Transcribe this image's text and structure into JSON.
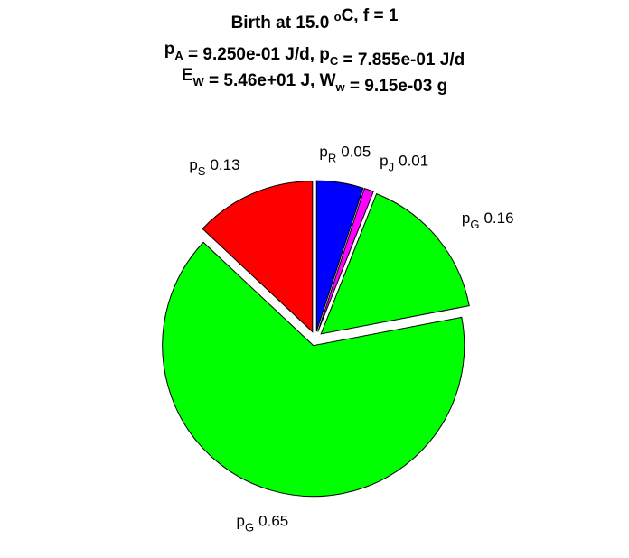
{
  "chart_data": {
    "type": "pie",
    "title": [
      [
        {
          "text": "Birth at 15.0 "
        },
        {
          "sup": "o"
        },
        {
          "text": "C, f = 1"
        }
      ],
      [
        {
          "text": "p"
        },
        {
          "sub": "A"
        },
        {
          "text": " = 9.250e-01 J/d, p"
        },
        {
          "sub": "C"
        },
        {
          "text": " = 7.855e-01 J/d"
        }
      ],
      [
        {
          "text": "E"
        },
        {
          "sub": "W"
        },
        {
          "text": " = 5.46e+01 J, W"
        },
        {
          "sub": "w"
        },
        {
          "text": " = 9.15e-03 g"
        }
      ]
    ],
    "categories": [
      {
        "symbol": "p",
        "sub": "R"
      },
      {
        "symbol": "p",
        "sub": "J"
      },
      {
        "symbol": "p",
        "sub": "G"
      },
      {
        "symbol": "p",
        "sub": "G"
      },
      {
        "symbol": "p",
        "sub": "S"
      }
    ],
    "values": [
      0.05,
      0.01,
      0.16,
      0.65,
      0.13
    ],
    "colors": [
      "#0000ff",
      "#ff00ff",
      "#00ff00",
      "#00ff00",
      "#ff0000"
    ]
  }
}
